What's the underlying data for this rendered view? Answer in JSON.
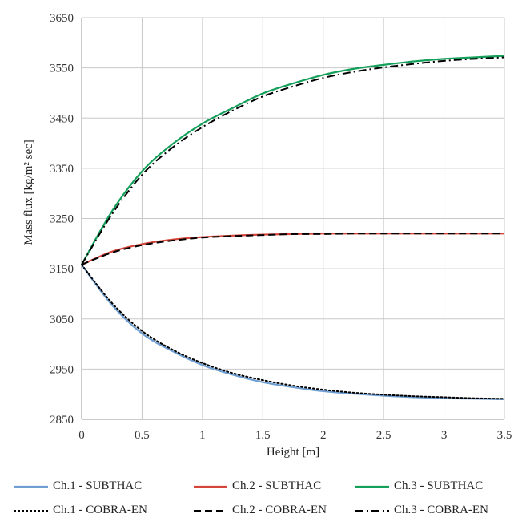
{
  "chart_data": {
    "type": "line",
    "title": "",
    "xlabel": "Height [m]",
    "ylabel": "Mass flux [kg/m² sec]",
    "xlim": [
      0,
      3.5
    ],
    "ylim": [
      2850,
      3650
    ],
    "xticks": [
      0,
      0.5,
      1,
      1.5,
      2,
      2.5,
      3,
      3.5
    ],
    "xtick_labels": [
      "0",
      "0.5",
      "1",
      "1.5",
      "2",
      "2.5",
      "3",
      "3.5"
    ],
    "yticks": [
      2850,
      2950,
      3050,
      3150,
      3250,
      3350,
      3450,
      3550,
      3650
    ],
    "ytick_labels": [
      "2850",
      "2950",
      "3050",
      "3150",
      "3250",
      "3350",
      "3450",
      "3550",
      "3650"
    ],
    "grid": true,
    "legend_position": "bottom",
    "x": [
      0,
      0.25,
      0.5,
      0.75,
      1,
      1.25,
      1.5,
      1.75,
      2,
      2.25,
      2.5,
      2.75,
      3,
      3.25,
      3.5
    ],
    "series": [
      {
        "name": "Ch.1 - SUBTHAC",
        "color": "#6f9fd2",
        "dash": "solid",
        "values": [
          3158,
          3078,
          3021,
          2986,
          2958,
          2939,
          2924,
          2914,
          2906,
          2901,
          2897,
          2894,
          2892,
          2891,
          2890
        ]
      },
      {
        "name": "Ch.2 - SUBTHAC",
        "color": "#d6453a",
        "dash": "solid",
        "values": [
          3158,
          3184,
          3199,
          3208,
          3213,
          3216,
          3218,
          3219,
          3220,
          3220,
          3220,
          3220,
          3220,
          3220,
          3220
        ]
      },
      {
        "name": "Ch.3 - SUBTHAC",
        "color": "#14a05a",
        "dash": "solid",
        "values": [
          3158,
          3264,
          3344,
          3398,
          3439,
          3470,
          3499,
          3519,
          3536,
          3548,
          3556,
          3563,
          3568,
          3571,
          3574
        ]
      },
      {
        "name": "Ch.1 - COBRA-EN",
        "color": "#000000",
        "dash": "dot",
        "values": [
          3158,
          3082,
          3026,
          2989,
          2962,
          2942,
          2928,
          2917,
          2909,
          2903,
          2899,
          2896,
          2894,
          2892,
          2891
        ]
      },
      {
        "name": "Ch.2 - COBRA-EN",
        "color": "#000000",
        "dash": "dash",
        "values": [
          3158,
          3182,
          3197,
          3206,
          3212,
          3215,
          3217,
          3219,
          3219,
          3220,
          3220,
          3220,
          3220,
          3220,
          3220
        ]
      },
      {
        "name": "Ch.3 - COBRA-EN",
        "color": "#000000",
        "dash": "dashdot",
        "values": [
          3158,
          3258,
          3337,
          3391,
          3432,
          3465,
          3493,
          3513,
          3530,
          3542,
          3551,
          3558,
          3564,
          3568,
          3571
        ]
      }
    ]
  }
}
